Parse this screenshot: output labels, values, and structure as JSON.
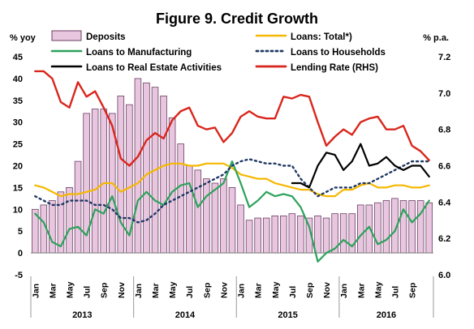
{
  "chart_data": {
    "type": "bar+line",
    "title": "Figure 9. Credit Growth",
    "ylabel_left": "% yoy",
    "ylabel_right": "% p.a.",
    "ylim_left": [
      -5,
      45
    ],
    "ylim_right": [
      6.0,
      7.2
    ],
    "yticks_left": [
      -5,
      0,
      5,
      10,
      15,
      20,
      25,
      30,
      35,
      40,
      45
    ],
    "yticks_right": [
      "6.0",
      "6.2",
      "6.4",
      "6.6",
      "6.8",
      "7.0",
      "7.2"
    ],
    "month_labels": [
      "Jan",
      "Mar",
      "May",
      "Jul",
      "Sep",
      "Nov",
      "Jan",
      "Mar",
      "May",
      "Jul",
      "Sep",
      "Nov",
      "Jan",
      "Mar",
      "May",
      "Jul",
      "Sep",
      "Nov",
      "Jan",
      "Mar",
      "May",
      "Jul",
      "Sep"
    ],
    "year_labels": [
      "2013",
      "2014",
      "2015",
      "2016"
    ],
    "grid": false,
    "legend_position": "top",
    "colors": {
      "deposits_fill": "#e8c6df",
      "deposits_stroke": "#6b3f63",
      "loans_total": "#f5b800",
      "loans_manufacturing": "#2ba25a",
      "loans_households": "#203864",
      "loans_real_estate": "#000000",
      "lending_rate": "#d9261c"
    },
    "series": [
      {
        "name": "Deposits",
        "kind": "bar",
        "axis": "left",
        "values": [
          10,
          11,
          12,
          14,
          15,
          21,
          32,
          33,
          33,
          32,
          36,
          34,
          40,
          39,
          38,
          36,
          31,
          25,
          20,
          19,
          17,
          16,
          17,
          15,
          11,
          7.5,
          8,
          8,
          8.5,
          8.5,
          9,
          8.5,
          8,
          8.5,
          8,
          9,
          9,
          9,
          11,
          11,
          11.5,
          12,
          12.5,
          12,
          12,
          12,
          11.5
        ]
      },
      {
        "name": "Loans: Total*)",
        "kind": "line",
        "axis": "left",
        "values": [
          15.5,
          15,
          14,
          13,
          13.5,
          13.5,
          14,
          14.5,
          16,
          16,
          14,
          15,
          16,
          18,
          19,
          20,
          20.5,
          20.5,
          20,
          20,
          20.5,
          20.5,
          20.5,
          19.5,
          18,
          17.5,
          17,
          17,
          16,
          15.5,
          15,
          14.5,
          14.5,
          13.5,
          13,
          13,
          14.5,
          14.5,
          15.5,
          16,
          15,
          15,
          15.5,
          15.5,
          15,
          15,
          15.5
        ]
      },
      {
        "name": "Loans to Manufacturing",
        "kind": "line",
        "axis": "left",
        "values": [
          9,
          7,
          2.5,
          1.5,
          5.5,
          6,
          4,
          10,
          9,
          13,
          7,
          4,
          12,
          14,
          12,
          11,
          14,
          15.5,
          16,
          10.5,
          13,
          14.5,
          16,
          21,
          16,
          10.5,
          12,
          14,
          13,
          13.5,
          13,
          10.5,
          6,
          -2,
          0,
          1,
          3,
          1.5,
          4,
          6,
          2,
          3,
          5,
          10,
          7,
          9,
          12
        ]
      },
      {
        "name": "Loans to Households",
        "kind": "line",
        "axis": "left",
        "values": [
          13,
          12,
          11,
          11,
          12,
          12,
          12,
          11,
          11,
          10,
          8,
          8,
          7,
          7.5,
          9,
          11,
          12,
          13,
          14,
          15,
          16,
          17,
          18,
          20,
          21,
          21.5,
          21,
          20.5,
          20.5,
          20,
          20,
          17,
          15,
          13,
          14,
          15,
          15,
          15,
          16,
          16,
          17,
          18,
          19,
          20,
          21,
          21,
          21
        ]
      },
      {
        "name": "Loans to Real Estate Activities",
        "kind": "line",
        "axis": "left",
        "x_start_index": 30,
        "values": [
          16,
          16,
          15,
          20,
          23,
          22.5,
          19,
          21,
          25,
          20,
          20.5,
          22,
          20,
          19,
          20,
          20,
          17.5
        ]
      },
      {
        "name": "Lending Rate (RHS)",
        "kind": "line",
        "axis": "right",
        "values": [
          7.12,
          7.12,
          7.08,
          6.95,
          6.92,
          7.06,
          6.98,
          7.01,
          6.92,
          6.82,
          6.64,
          6.6,
          6.65,
          6.74,
          6.78,
          6.75,
          6.85,
          6.9,
          6.92,
          6.82,
          6.8,
          6.81,
          6.73,
          6.78,
          6.87,
          6.9,
          6.87,
          6.86,
          6.86,
          6.98,
          6.97,
          6.99,
          6.98,
          6.84,
          6.71,
          6.76,
          6.8,
          6.77,
          6.84,
          6.86,
          6.87,
          6.8,
          6.8,
          6.82,
          6.71,
          6.68,
          6.63
        ]
      }
    ]
  }
}
